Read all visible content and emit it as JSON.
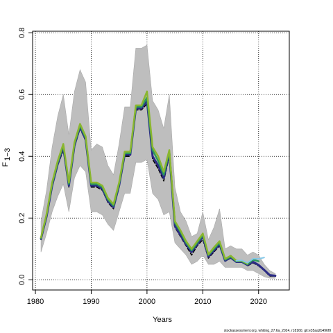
{
  "chart_data": {
    "type": "line",
    "xlabel": "Years",
    "ylabel": "F",
    "ylabel_sub": "1−3",
    "xlim": [
      1979.5,
      2025.5
    ],
    "ylim": [
      -0.033,
      0.805
    ],
    "xticks": [
      1980,
      1990,
      2000,
      2010,
      2020
    ],
    "yticks": [
      0.0,
      0.2,
      0.4,
      0.6,
      0.8
    ],
    "ytick_labels": [
      "0.0",
      "0.2",
      "0.4",
      "0.6",
      "0.8"
    ],
    "grid": true,
    "grid_style": "dotted",
    "footnote": "stockassessment.org, whiting_27.6a_2024, r18160, git:e35aa2b496f0",
    "confidence_band": {
      "color": "#bebebe",
      "x": [
        1981,
        1982,
        1983,
        1984,
        1985,
        1986,
        1987,
        1988,
        1989,
        1990,
        1991,
        1992,
        1993,
        1994,
        1995,
        1996,
        1997,
        1998,
        1999,
        2000,
        2001,
        2002,
        2003,
        2004,
        2005,
        2006,
        2007,
        2008,
        2009,
        2010,
        2011,
        2012,
        2013,
        2014,
        2015,
        2016,
        2017,
        2018,
        2019,
        2020,
        2021,
        2022,
        2023
      ],
      "lower": [
        0.09,
        0.15,
        0.22,
        0.27,
        0.31,
        0.22,
        0.33,
        0.37,
        0.35,
        0.22,
        0.22,
        0.21,
        0.18,
        0.16,
        0.22,
        0.28,
        0.28,
        0.38,
        0.38,
        0.39,
        0.28,
        0.26,
        0.21,
        0.22,
        0.12,
        0.1,
        0.08,
        0.05,
        0.06,
        0.08,
        0.05,
        0.05,
        0.06,
        0.04,
        0.04,
        0.04,
        0.04,
        0.03,
        0.03,
        0.02,
        0.01,
        0.005,
        0.005
      ],
      "upper": [
        0.19,
        0.29,
        0.43,
        0.53,
        0.6,
        0.47,
        0.61,
        0.68,
        0.64,
        0.42,
        0.44,
        0.43,
        0.37,
        0.34,
        0.44,
        0.56,
        0.56,
        0.75,
        0.75,
        0.76,
        0.58,
        0.55,
        0.49,
        0.6,
        0.3,
        0.22,
        0.19,
        0.14,
        0.15,
        0.22,
        0.13,
        0.17,
        0.23,
        0.1,
        0.11,
        0.1,
        0.1,
        0.08,
        0.09,
        0.08,
        0.05,
        0.03,
        0.02
      ]
    },
    "series": [
      {
        "color": "#000000",
        "dash": "5,3",
        "width": 1.5,
        "x": [
          1981,
          1982,
          1983,
          1984,
          1985,
          1986,
          1987,
          1988,
          1989,
          1990,
          1991,
          1992,
          1993,
          1994,
          1995,
          1996,
          1997,
          1998,
          1999,
          2000,
          2001,
          2002,
          2003,
          2004,
          2005,
          2006,
          2007,
          2008,
          2009,
          2010,
          2011,
          2012,
          2013,
          2014,
          2015,
          2016,
          2017,
          2018,
          2019,
          2020,
          2021,
          2022,
          2023
        ],
        "values": [
          0.13,
          0.2,
          0.3,
          0.37,
          0.42,
          0.3,
          0.43,
          0.49,
          0.45,
          0.3,
          0.3,
          0.29,
          0.25,
          0.23,
          0.3,
          0.4,
          0.4,
          0.55,
          0.55,
          0.57,
          0.39,
          0.36,
          0.32,
          0.4,
          0.17,
          0.14,
          0.11,
          0.08,
          0.11,
          0.13,
          0.07,
          0.09,
          0.11,
          0.06,
          0.07,
          0.06,
          0.06,
          0.045,
          0.055,
          0.045,
          0.03,
          0.012,
          0.012
        ]
      },
      {
        "color": "#2b2b86",
        "width": 3,
        "x": [
          1981,
          1982,
          1983,
          1984,
          1985,
          1986,
          1987,
          1988,
          1989,
          1990,
          1991,
          1992,
          1993,
          1994,
          1995,
          1996,
          1997,
          1998,
          1999,
          2000,
          2001,
          2002,
          2003,
          2004,
          2005,
          2006,
          2007,
          2008,
          2009,
          2010,
          2011,
          2012,
          2013,
          2014,
          2015,
          2016,
          2017,
          2018,
          2019,
          2020,
          2021,
          2022,
          2023
        ],
        "values": [
          0.133,
          0.205,
          0.305,
          0.375,
          0.43,
          0.305,
          0.435,
          0.495,
          0.455,
          0.305,
          0.305,
          0.295,
          0.255,
          0.235,
          0.305,
          0.405,
          0.405,
          0.555,
          0.555,
          0.58,
          0.4,
          0.37,
          0.33,
          0.41,
          0.175,
          0.145,
          0.115,
          0.09,
          0.115,
          0.14,
          0.075,
          0.095,
          0.115,
          0.062,
          0.072,
          0.058,
          0.058,
          0.048,
          0.058,
          0.048,
          0.032,
          0.015,
          0.013
        ]
      },
      {
        "color": "#2e9a5c",
        "width": 2.5,
        "x": [
          1981,
          1982,
          1983,
          1984,
          1985,
          1986,
          1987,
          1988,
          1989,
          1990,
          1991,
          1992,
          1993,
          1994,
          1995,
          1996,
          1997,
          1998,
          1999,
          2000,
          2001,
          2002,
          2003,
          2004,
          2005,
          2006,
          2007,
          2008,
          2009,
          2010,
          2011,
          2012,
          2013,
          2014,
          2015,
          2016,
          2017,
          2018,
          2019,
          2020
        ],
        "values": [
          0.135,
          0.21,
          0.31,
          0.38,
          0.435,
          0.31,
          0.44,
          0.5,
          0.46,
          0.31,
          0.31,
          0.3,
          0.26,
          0.24,
          0.31,
          0.41,
          0.41,
          0.56,
          0.56,
          0.59,
          0.42,
          0.385,
          0.34,
          0.415,
          0.185,
          0.155,
          0.12,
          0.095,
          0.12,
          0.145,
          0.08,
          0.1,
          0.12,
          0.065,
          0.075,
          0.06,
          0.06,
          0.05,
          0.065,
          0.06
        ]
      },
      {
        "color": "#8ab62f",
        "width": 2.5,
        "x": [
          1981,
          1982,
          1983,
          1984,
          1985,
          1986,
          1987,
          1988,
          1989,
          1990,
          1991,
          1992,
          1993,
          1994,
          1995,
          1996,
          1997,
          1998,
          1999,
          2000,
          2001,
          2002,
          2003,
          2004,
          2005,
          2006,
          2007,
          2008,
          2009,
          2010,
          2011,
          2012,
          2013,
          2014,
          2015,
          2016,
          2017,
          2018
        ],
        "values": [
          0.137,
          0.212,
          0.315,
          0.385,
          0.44,
          0.315,
          0.445,
          0.505,
          0.465,
          0.315,
          0.315,
          0.305,
          0.265,
          0.245,
          0.315,
          0.415,
          0.415,
          0.565,
          0.565,
          0.61,
          0.43,
          0.4,
          0.35,
          0.42,
          0.19,
          0.16,
          0.125,
          0.1,
          0.125,
          0.15,
          0.082,
          0.105,
          0.125,
          0.068,
          0.078,
          0.062,
          0.062,
          0.052
        ]
      },
      {
        "color": "#85c8e8",
        "width": 2,
        "x": [
          2016,
          2017,
          2018,
          2019,
          2020,
          2021
        ],
        "values": [
          0.062,
          0.063,
          0.055,
          0.068,
          0.068,
          0.072
        ]
      }
    ]
  }
}
